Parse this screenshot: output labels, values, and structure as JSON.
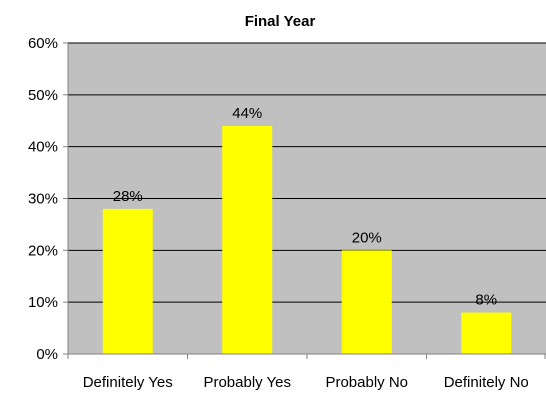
{
  "chart_data": {
    "type": "bar",
    "title": "Final Year",
    "categories": [
      "Definitely Yes",
      "Probably Yes",
      "Probably No",
      "Definitely No"
    ],
    "values": [
      28,
      44,
      20,
      8
    ],
    "data_labels": [
      "28%",
      "44%",
      "20%",
      "8%"
    ],
    "ylim": [
      0,
      60
    ],
    "yticks": [
      0,
      10,
      20,
      30,
      40,
      50,
      60
    ],
    "ytick_labels": [
      "0%",
      "10%",
      "20%",
      "30%",
      "40%",
      "50%",
      "60%"
    ],
    "xlabel": "",
    "ylabel": "",
    "grid": true,
    "legend": "none",
    "colors": {
      "bar": "#FFFF00",
      "plot_background": "#C0C0C0",
      "gridline": "#000000",
      "axis": "#808080",
      "text": "#000000"
    }
  }
}
